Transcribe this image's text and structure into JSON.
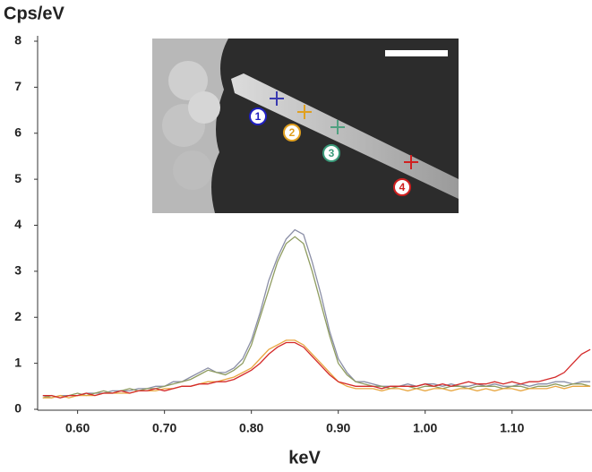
{
  "chart_data": {
    "type": "line",
    "y_label": "Cps/eV",
    "x_label": "keV",
    "annotations": [
      "1",
      "2",
      "3",
      "4"
    ],
    "x": [
      0.56,
      0.57,
      0.58,
      0.59,
      0.6,
      0.61,
      0.62,
      0.63,
      0.64,
      0.65,
      0.66,
      0.67,
      0.68,
      0.69,
      0.7,
      0.71,
      0.72,
      0.73,
      0.74,
      0.75,
      0.76,
      0.77,
      0.78,
      0.79,
      0.8,
      0.81,
      0.82,
      0.83,
      0.84,
      0.85,
      0.86,
      0.87,
      0.88,
      0.89,
      0.9,
      0.91,
      0.92,
      0.93,
      0.94,
      0.95,
      0.96,
      0.97,
      0.98,
      0.99,
      1.0,
      1.01,
      1.02,
      1.03,
      1.04,
      1.05,
      1.06,
      1.07,
      1.08,
      1.09,
      1.1,
      1.11,
      1.12,
      1.13,
      1.14,
      1.15,
      1.16,
      1.17,
      1.18,
      1.19
    ],
    "series": [
      {
        "color": "#8a8ea6",
        "values": [
          0.3,
          0.25,
          0.3,
          0.3,
          0.3,
          0.35,
          0.35,
          0.35,
          0.4,
          0.4,
          0.4,
          0.45,
          0.45,
          0.5,
          0.5,
          0.6,
          0.6,
          0.7,
          0.8,
          0.9,
          0.8,
          0.8,
          0.9,
          1.1,
          1.5,
          2.1,
          2.8,
          3.3,
          3.7,
          3.9,
          3.8,
          3.2,
          2.5,
          1.7,
          1.1,
          0.8,
          0.6,
          0.6,
          0.55,
          0.5,
          0.5,
          0.5,
          0.55,
          0.5,
          0.55,
          0.55,
          0.5,
          0.55,
          0.5,
          0.5,
          0.55,
          0.5,
          0.55,
          0.5,
          0.5,
          0.55,
          0.5,
          0.55,
          0.55,
          0.6,
          0.6,
          0.55,
          0.6,
          0.6
        ]
      },
      {
        "color": "#8f9c60",
        "values": [
          0.25,
          0.3,
          0.25,
          0.3,
          0.35,
          0.3,
          0.35,
          0.4,
          0.35,
          0.4,
          0.45,
          0.4,
          0.45,
          0.45,
          0.5,
          0.55,
          0.6,
          0.65,
          0.75,
          0.85,
          0.8,
          0.75,
          0.85,
          1.0,
          1.4,
          2.0,
          2.6,
          3.2,
          3.6,
          3.75,
          3.6,
          3.0,
          2.3,
          1.6,
          1.0,
          0.75,
          0.6,
          0.55,
          0.5,
          0.5,
          0.45,
          0.5,
          0.5,
          0.45,
          0.5,
          0.5,
          0.45,
          0.5,
          0.5,
          0.45,
          0.5,
          0.5,
          0.5,
          0.45,
          0.5,
          0.5,
          0.45,
          0.5,
          0.5,
          0.55,
          0.5,
          0.55,
          0.55,
          0.5
        ]
      },
      {
        "color": "#e8a640",
        "values": [
          0.25,
          0.25,
          0.3,
          0.25,
          0.3,
          0.3,
          0.3,
          0.35,
          0.35,
          0.35,
          0.35,
          0.4,
          0.4,
          0.4,
          0.45,
          0.45,
          0.5,
          0.5,
          0.55,
          0.6,
          0.6,
          0.65,
          0.7,
          0.8,
          0.9,
          1.1,
          1.3,
          1.4,
          1.5,
          1.5,
          1.4,
          1.2,
          1.0,
          0.8,
          0.6,
          0.5,
          0.45,
          0.45,
          0.45,
          0.4,
          0.45,
          0.45,
          0.4,
          0.45,
          0.4,
          0.45,
          0.45,
          0.4,
          0.45,
          0.45,
          0.4,
          0.45,
          0.4,
          0.45,
          0.45,
          0.4,
          0.45,
          0.45,
          0.45,
          0.5,
          0.45,
          0.5,
          0.5,
          0.5
        ]
      },
      {
        "color": "#d42a2a",
        "values": [
          0.3,
          0.3,
          0.25,
          0.3,
          0.3,
          0.35,
          0.3,
          0.35,
          0.35,
          0.4,
          0.35,
          0.4,
          0.4,
          0.45,
          0.4,
          0.45,
          0.5,
          0.5,
          0.55,
          0.55,
          0.6,
          0.6,
          0.65,
          0.75,
          0.85,
          1.0,
          1.2,
          1.35,
          1.45,
          1.45,
          1.35,
          1.15,
          0.95,
          0.75,
          0.6,
          0.55,
          0.5,
          0.5,
          0.5,
          0.45,
          0.5,
          0.5,
          0.5,
          0.5,
          0.55,
          0.5,
          0.55,
          0.5,
          0.55,
          0.6,
          0.55,
          0.55,
          0.6,
          0.55,
          0.6,
          0.55,
          0.6,
          0.6,
          0.65,
          0.7,
          0.8,
          1.0,
          1.2,
          1.3
        ]
      }
    ],
    "xlim": [
      0.554,
      1.192
    ],
    "ylim": [
      0,
      8
    ],
    "xticks": [
      {
        "value": 0.6,
        "label": "0.60"
      },
      {
        "value": 0.7,
        "label": "0.70"
      },
      {
        "value": 0.8,
        "label": "0.80"
      },
      {
        "value": 0.9,
        "label": "0.90"
      },
      {
        "value": 1.0,
        "label": "1.00"
      },
      {
        "value": 1.1,
        "label": "1.10"
      }
    ],
    "yticks": [
      0,
      1,
      2,
      3,
      4,
      5,
      6,
      7,
      8
    ]
  }
}
